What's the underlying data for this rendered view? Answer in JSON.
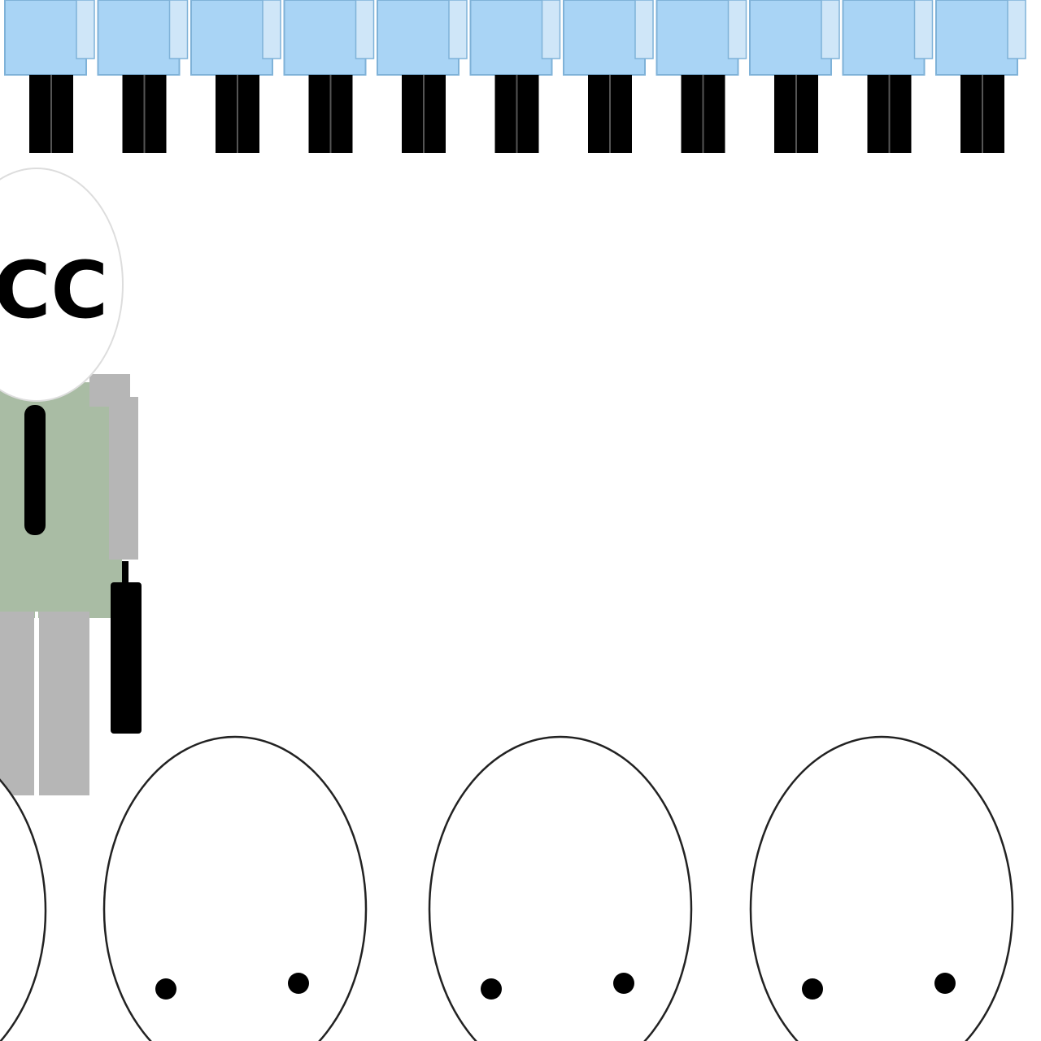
{
  "scene": {
    "badge_text": "CC",
    "colors": {
      "background": "#ffffff",
      "crowd_shirt": "#a9d4f5",
      "crowd_shirt_edge": "#7fb2d8",
      "crowd_legs": "#000000",
      "figure_suit": "#a9bca4",
      "figure_suit_shade": "#b6b6b6",
      "tie": "#000000",
      "briefcase": "#000000",
      "head_outline": "#222222",
      "head_fill": "#ffffff",
      "eyes": "#000000"
    },
    "crowd_row": {
      "figure_count": 11
    },
    "audience_row": {
      "head_count": 4
    }
  }
}
